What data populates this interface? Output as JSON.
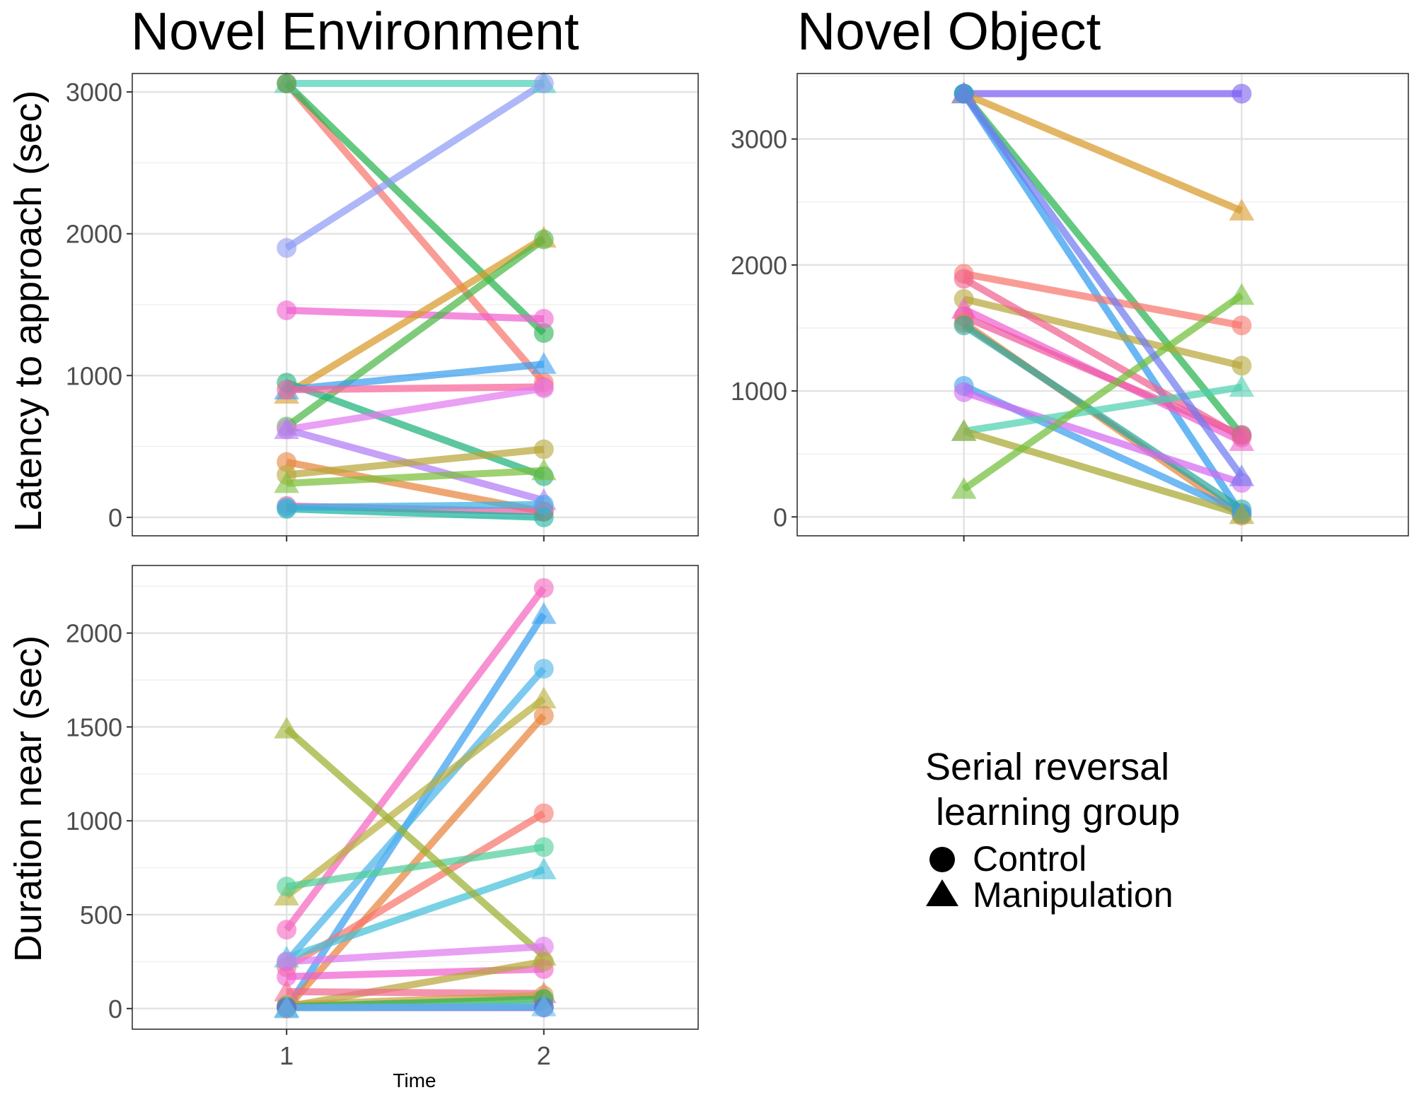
{
  "chart_data": [
    {
      "type": "line",
      "title": "Novel Environment",
      "ylabel": "Latency to approach (sec)",
      "xlabel": "",
      "x": [
        1,
        2
      ],
      "ylim": [
        -130,
        3130
      ],
      "yticks": [
        0,
        1000,
        2000,
        3000
      ],
      "grid": true,
      "series": [
        {
          "color": "#4fd0b8",
          "shape": "triangle",
          "values": [
            3060,
            3060
          ]
        },
        {
          "color": "#f8766d",
          "shape": "circle",
          "values": [
            3060,
            950
          ]
        },
        {
          "color": "#27b450",
          "shape": "circle",
          "values": [
            3060,
            1300
          ]
        },
        {
          "color": "#8f9cf5",
          "shape": "circle",
          "values": [
            1900,
            3060
          ]
        },
        {
          "color": "#f061d0",
          "shape": "circle",
          "values": [
            1460,
            1400
          ]
        },
        {
          "color": "#d89a2a",
          "shape": "triangle",
          "values": [
            870,
            1970
          ]
        },
        {
          "color": "#4cb848",
          "shape": "circle",
          "values": [
            640,
            1960
          ]
        },
        {
          "color": "#1fb17a",
          "shape": "circle",
          "values": [
            950,
            290
          ]
        },
        {
          "color": "#3aa0ee",
          "shape": "triangle",
          "values": [
            900,
            1080
          ]
        },
        {
          "color": "#f8649a",
          "shape": "circle",
          "values": [
            900,
            920
          ]
        },
        {
          "color": "#e27cf0",
          "shape": "circle",
          "values": [
            620,
            910
          ]
        },
        {
          "color": "#b17cf5",
          "shape": "triangle",
          "values": [
            620,
            120
          ]
        },
        {
          "color": "#e8853d",
          "shape": "circle",
          "values": [
            390,
            40
          ]
        },
        {
          "color": "#b8a63a",
          "shape": "circle",
          "values": [
            300,
            480
          ]
        },
        {
          "color": "#7cbf3a",
          "shape": "triangle",
          "values": [
            240,
            330
          ]
        },
        {
          "color": "#ee5c9e",
          "shape": "circle",
          "values": [
            80,
            40
          ]
        },
        {
          "color": "#19b49e",
          "shape": "circle",
          "values": [
            60,
            0
          ]
        },
        {
          "color": "#3ab0e8",
          "shape": "circle",
          "values": [
            70,
            90
          ]
        }
      ]
    },
    {
      "type": "line",
      "title": "Novel Object",
      "ylabel": "",
      "xlabel": "",
      "x": [
        1,
        2
      ],
      "ylim": [
        -150,
        3520
      ],
      "yticks": [
        0,
        1000,
        2000,
        3000
      ],
      "grid": true,
      "series": [
        {
          "color": "#7a5cf0",
          "shape": "circle",
          "values": [
            3360,
            3360
          ]
        },
        {
          "color": "#d89a2a",
          "shape": "triangle",
          "values": [
            3360,
            2430
          ]
        },
        {
          "color": "#27b450",
          "shape": "circle",
          "values": [
            3360,
            650
          ]
        },
        {
          "color": "#2f9cf0",
          "shape": "circle",
          "values": [
            3360,
            20
          ]
        },
        {
          "color": "#f8766d",
          "shape": "circle",
          "values": [
            1930,
            1520
          ]
        },
        {
          "color": "#b8a63a",
          "shape": "circle",
          "values": [
            1730,
            1200
          ]
        },
        {
          "color": "#f06290",
          "shape": "circle",
          "values": [
            1890,
            630
          ]
        },
        {
          "color": "#f061d0",
          "shape": "triangle",
          "values": [
            1650,
            600
          ]
        },
        {
          "color": "#ee5aa0",
          "shape": "circle",
          "values": [
            1590,
            650
          ]
        },
        {
          "color": "#e8853d",
          "shape": "circle",
          "values": [
            1540,
            10
          ]
        },
        {
          "color": "#2aa8a0",
          "shape": "circle",
          "values": [
            1520,
            60
          ]
        },
        {
          "color": "#3aa0ee",
          "shape": "circle",
          "values": [
            1040,
            30
          ]
        },
        {
          "color": "#d46af0",
          "shape": "circle",
          "values": [
            990,
            270
          ]
        },
        {
          "color": "#4fd0b0",
          "shape": "triangle",
          "values": [
            680,
            1030
          ]
        },
        {
          "color": "#a8a830",
          "shape": "triangle",
          "values": [
            680,
            20
          ]
        },
        {
          "color": "#72bf3a",
          "shape": "triangle",
          "values": [
            220,
            1760
          ]
        },
        {
          "color": "#6f7cf0",
          "shape": "triangle",
          "values": [
            3360,
            320
          ]
        }
      ]
    },
    {
      "type": "line",
      "title": "",
      "ylabel": "Duration near (sec)",
      "xlabel": "Time",
      "x": [
        1,
        2
      ],
      "xticks": [
        "1",
        "2"
      ],
      "ylim": [
        -110,
        2360
      ],
      "yticks": [
        0,
        500,
        1000,
        1500,
        2000
      ],
      "grid": true,
      "series": [
        {
          "color": "#f567c0",
          "shape": "circle",
          "values": [
            420,
            2240
          ]
        },
        {
          "color": "#3aa0ee",
          "shape": "triangle",
          "values": [
            0,
            2100
          ]
        },
        {
          "color": "#4cb4ea",
          "shape": "circle",
          "values": [
            250,
            1810
          ]
        },
        {
          "color": "#b8b040",
          "shape": "triangle",
          "values": [
            600,
            1650
          ]
        },
        {
          "color": "#e8853d",
          "shape": "circle",
          "values": [
            0,
            1560
          ]
        },
        {
          "color": "#f8766d",
          "shape": "circle",
          "values": [
            220,
            1040
          ]
        },
        {
          "color": "#4fcf9a",
          "shape": "circle",
          "values": [
            650,
            860
          ]
        },
        {
          "color": "#44c0d8",
          "shape": "triangle",
          "values": [
            270,
            740
          ]
        },
        {
          "color": "#9cb030",
          "shape": "triangle",
          "values": [
            1490,
            280
          ]
        },
        {
          "color": "#e07af0",
          "shape": "circle",
          "values": [
            250,
            330
          ]
        },
        {
          "color": "#f061d0",
          "shape": "circle",
          "values": [
            170,
            210
          ]
        },
        {
          "color": "#b8a63a",
          "shape": "circle",
          "values": [
            10,
            250
          ]
        },
        {
          "color": "#f06a8e",
          "shape": "triangle",
          "values": [
            90,
            80
          ]
        },
        {
          "color": "#cfa040",
          "shape": "circle",
          "values": [
            20,
            70
          ]
        },
        {
          "color": "#27b450",
          "shape": "circle",
          "values": [
            10,
            50
          ]
        },
        {
          "color": "#2aa8a0",
          "shape": "circle",
          "values": [
            5,
            10
          ]
        },
        {
          "color": "#7a5cf0",
          "shape": "circle",
          "values": [
            5,
            5
          ]
        },
        {
          "color": "#60c0e8",
          "shape": "triangle",
          "values": [
            5,
            10
          ]
        }
      ]
    }
  ],
  "legend": {
    "title_line1": "Serial reversal",
    "title_line2": " learning group",
    "items": [
      {
        "label": "Control",
        "shape": "circle"
      },
      {
        "label": "Manipulation",
        "shape": "triangle"
      }
    ]
  }
}
